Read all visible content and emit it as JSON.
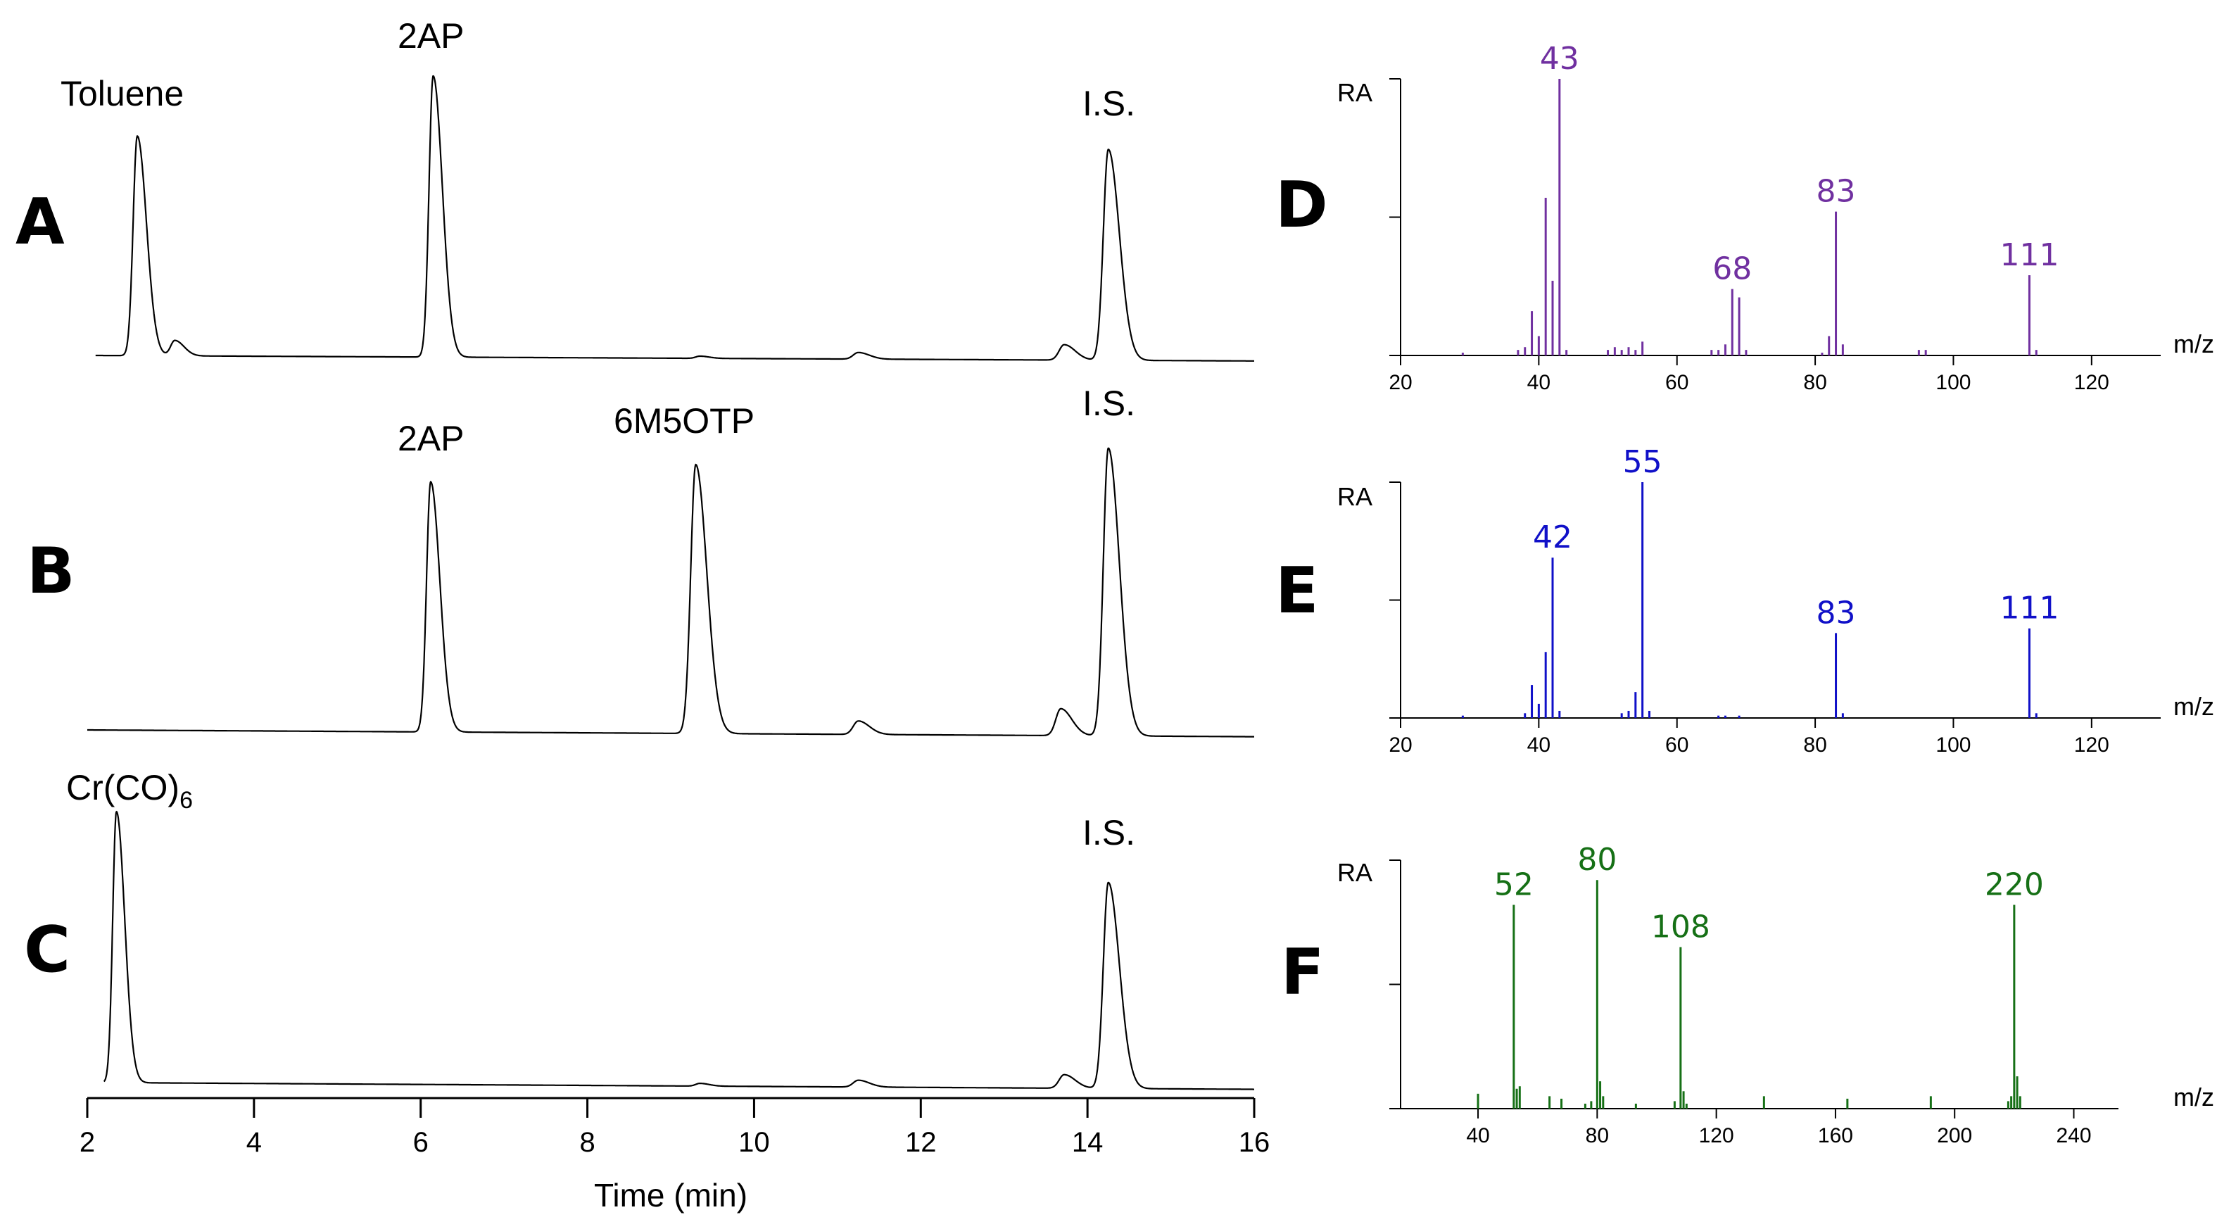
{
  "chart_data": [
    {
      "panel": "chromatograms",
      "type": "line",
      "xlabel": "Time (min)",
      "xlim": [
        2,
        16
      ],
      "xticks": [
        "2",
        "4",
        "6",
        "8",
        "10",
        "12",
        "14",
        "16"
      ],
      "series": [
        {
          "name": "A",
          "peaks": [
            {
              "t": 2.6,
              "h": 1.0,
              "w": 0.05,
              "label": "Toluene"
            },
            {
              "t": 3.05,
              "h": 0.07,
              "w": 0.05
            },
            {
              "t": 6.15,
              "h": 1.28,
              "w": 0.05,
              "label": "2AP"
            },
            {
              "t": 9.35,
              "h": 0.01,
              "w": 0.05
            },
            {
              "t": 11.25,
              "h": 0.03,
              "w": 0.06
            },
            {
              "t": 13.72,
              "h": 0.07,
              "w": 0.06
            },
            {
              "t": 14.25,
              "h": 0.96,
              "w": 0.06,
              "label": "I.S."
            }
          ]
        },
        {
          "name": "B",
          "peaks": [
            {
              "t": 6.12,
              "h": 0.93,
              "w": 0.05,
              "label": "2AP"
            },
            {
              "t": 9.3,
              "h": 1.0,
              "w": 0.06,
              "label": "6M5OTP"
            },
            {
              "t": 11.25,
              "h": 0.05,
              "w": 0.06
            },
            {
              "t": 13.68,
              "h": 0.1,
              "w": 0.06
            },
            {
              "t": 14.25,
              "h": 1.07,
              "w": 0.06,
              "label": "I.S."
            }
          ]
        },
        {
          "name": "C",
          "peaks": [
            {
              "t": 2.35,
              "h": 1.0,
              "w": 0.045,
              "label": "Cr(CO)6"
            },
            {
              "t": 9.35,
              "h": 0.01,
              "w": 0.05
            },
            {
              "t": 11.25,
              "h": 0.025,
              "w": 0.06
            },
            {
              "t": 13.72,
              "h": 0.05,
              "w": 0.06
            },
            {
              "t": 14.25,
              "h": 0.76,
              "w": 0.06,
              "label": "I.S."
            }
          ]
        }
      ],
      "labels": {
        "toluene": "Toluene",
        "ap": "2AP",
        "m5otp": "6M5OTP",
        "is": "I.S.",
        "cr_main": "Cr(CO)",
        "cr_sub": "6"
      }
    },
    {
      "panel": "D",
      "type": "bar",
      "color": "#7030a0",
      "ylabel": "RA",
      "xlabel": "m/z",
      "xlim": [
        20,
        130
      ],
      "xticks": [
        "20",
        "40",
        "60",
        "80",
        "100",
        "120"
      ],
      "peaks": [
        {
          "mz": 29,
          "ra": 0.01
        },
        {
          "mz": 37,
          "ra": 0.02
        },
        {
          "mz": 38,
          "ra": 0.03
        },
        {
          "mz": 39,
          "ra": 0.16
        },
        {
          "mz": 40,
          "ra": 0.07
        },
        {
          "mz": 41,
          "ra": 0.57
        },
        {
          "mz": 42,
          "ra": 0.27
        },
        {
          "mz": 43,
          "ra": 1.0
        },
        {
          "mz": 44,
          "ra": 0.02
        },
        {
          "mz": 50,
          "ra": 0.02
        },
        {
          "mz": 51,
          "ra": 0.03
        },
        {
          "mz": 52,
          "ra": 0.02
        },
        {
          "mz": 53,
          "ra": 0.03
        },
        {
          "mz": 54,
          "ra": 0.02
        },
        {
          "mz": 55,
          "ra": 0.05
        },
        {
          "mz": 65,
          "ra": 0.02
        },
        {
          "mz": 66,
          "ra": 0.02
        },
        {
          "mz": 67,
          "ra": 0.04
        },
        {
          "mz": 68,
          "ra": 0.24
        },
        {
          "mz": 69,
          "ra": 0.21
        },
        {
          "mz": 70,
          "ra": 0.02
        },
        {
          "mz": 81,
          "ra": 0.01
        },
        {
          "mz": 82,
          "ra": 0.07
        },
        {
          "mz": 83,
          "ra": 0.52
        },
        {
          "mz": 84,
          "ra": 0.04
        },
        {
          "mz": 95,
          "ra": 0.02
        },
        {
          "mz": 96,
          "ra": 0.02
        },
        {
          "mz": 111,
          "ra": 0.29
        },
        {
          "mz": 112,
          "ra": 0.02
        }
      ],
      "labels": [
        {
          "mz": 43,
          "text": "43"
        },
        {
          "mz": 68,
          "text": "68"
        },
        {
          "mz": 83,
          "text": "83"
        },
        {
          "mz": 111,
          "text": "111"
        }
      ]
    },
    {
      "panel": "E",
      "type": "bar",
      "color": "#1010c8",
      "ylabel": "RA",
      "xlabel": "m/z",
      "xlim": [
        20,
        130
      ],
      "xticks": [
        "20",
        "40",
        "60",
        "80",
        "100",
        "120"
      ],
      "peaks": [
        {
          "mz": 29,
          "ra": 0.01
        },
        {
          "mz": 38,
          "ra": 0.02
        },
        {
          "mz": 39,
          "ra": 0.14
        },
        {
          "mz": 40,
          "ra": 0.06
        },
        {
          "mz": 41,
          "ra": 0.28
        },
        {
          "mz": 42,
          "ra": 0.68
        },
        {
          "mz": 43,
          "ra": 0.03
        },
        {
          "mz": 52,
          "ra": 0.02
        },
        {
          "mz": 53,
          "ra": 0.03
        },
        {
          "mz": 54,
          "ra": 0.11
        },
        {
          "mz": 55,
          "ra": 1.0
        },
        {
          "mz": 56,
          "ra": 0.03
        },
        {
          "mz": 66,
          "ra": 0.01
        },
        {
          "mz": 67,
          "ra": 0.01
        },
        {
          "mz": 69,
          "ra": 0.01
        },
        {
          "mz": 83,
          "ra": 0.36
        },
        {
          "mz": 84,
          "ra": 0.02
        },
        {
          "mz": 111,
          "ra": 0.38
        },
        {
          "mz": 112,
          "ra": 0.02
        }
      ],
      "labels": [
        {
          "mz": 42,
          "text": "42"
        },
        {
          "mz": 55,
          "text": "55"
        },
        {
          "mz": 83,
          "text": "83"
        },
        {
          "mz": 111,
          "text": "111"
        }
      ]
    },
    {
      "panel": "F",
      "type": "bar",
      "color": "#167016",
      "ylabel": "RA",
      "xlabel": "m/z",
      "xlim": [
        14,
        255
      ],
      "xticks": [
        "40",
        "80",
        "120",
        "160",
        "200",
        "240"
      ],
      "peaks": [
        {
          "mz": 40,
          "ra": 0.06
        },
        {
          "mz": 52,
          "ra": 0.82
        },
        {
          "mz": 53,
          "ra": 0.08
        },
        {
          "mz": 54,
          "ra": 0.09
        },
        {
          "mz": 64,
          "ra": 0.05
        },
        {
          "mz": 68,
          "ra": 0.04
        },
        {
          "mz": 76,
          "ra": 0.02
        },
        {
          "mz": 78,
          "ra": 0.03
        },
        {
          "mz": 80,
          "ra": 0.92
        },
        {
          "mz": 81,
          "ra": 0.11
        },
        {
          "mz": 82,
          "ra": 0.05
        },
        {
          "mz": 93,
          "ra": 0.02
        },
        {
          "mz": 106,
          "ra": 0.03
        },
        {
          "mz": 108,
          "ra": 0.65
        },
        {
          "mz": 109,
          "ra": 0.07
        },
        {
          "mz": 110,
          "ra": 0.02
        },
        {
          "mz": 136,
          "ra": 0.05
        },
        {
          "mz": 164,
          "ra": 0.04
        },
        {
          "mz": 192,
          "ra": 0.05
        },
        {
          "mz": 218,
          "ra": 0.03
        },
        {
          "mz": 219,
          "ra": 0.05
        },
        {
          "mz": 220,
          "ra": 0.82
        },
        {
          "mz": 221,
          "ra": 0.13
        },
        {
          "mz": 222,
          "ra": 0.05
        }
      ],
      "labels": [
        {
          "mz": 52,
          "text": "52"
        },
        {
          "mz": 80,
          "text": "80"
        },
        {
          "mz": 108,
          "text": "108"
        },
        {
          "mz": 220,
          "text": "220"
        }
      ]
    }
  ],
  "panel_letters": {
    "a": "A",
    "b": "B",
    "c": "C",
    "d": "D",
    "e": "E",
    "f": "F"
  }
}
